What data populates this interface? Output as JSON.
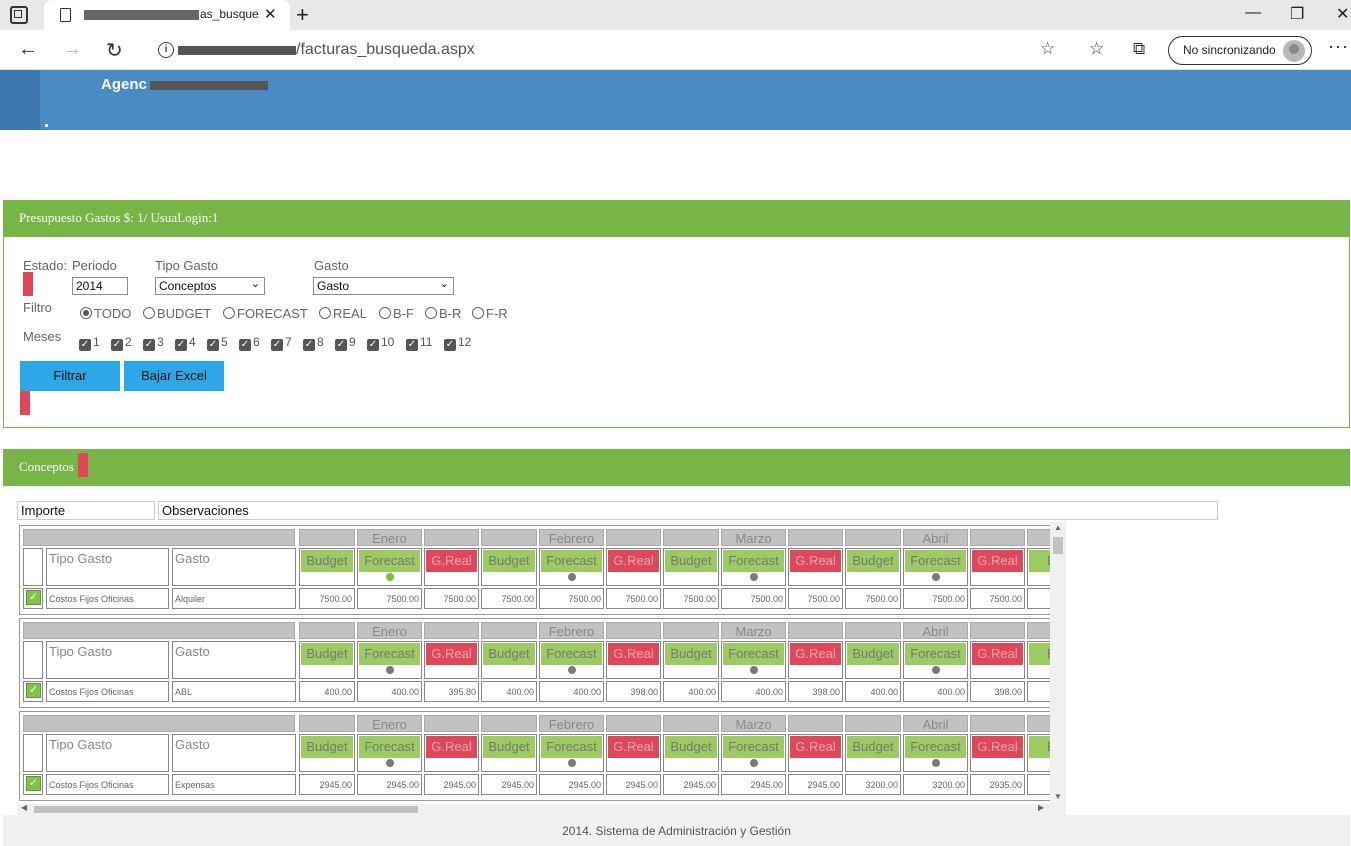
{
  "browser": {
    "tab_title": "as_busque",
    "url_path": "/facturas_busqueda.aspx",
    "profile_label": "No sincronizando"
  },
  "site": {
    "header_title": "Agenc"
  },
  "budget_panel": {
    "title": "Presupuesto Gastos $: 1/ UsuaLogin:1",
    "estado_label": "Estado:",
    "periodo_label": "Periodo",
    "periodo_value": "2014",
    "tipo_gasto_label": "Tipo Gasto",
    "tipo_gasto_value": "Conceptos",
    "gasto_label": "Gasto",
    "gasto_value": "Gasto",
    "filtro_label": "Filtro",
    "filters": [
      {
        "label": "TODO",
        "selected": true
      },
      {
        "label": "BUDGET",
        "selected": false
      },
      {
        "label": "FORECAST",
        "selected": false
      },
      {
        "label": "REAL",
        "selected": false
      },
      {
        "label": "B-F",
        "selected": false
      },
      {
        "label": "B-R",
        "selected": false
      },
      {
        "label": "F-R",
        "selected": false
      }
    ],
    "meses_label": "Meses",
    "months_checked": [
      "1",
      "2",
      "3",
      "4",
      "5",
      "6",
      "7",
      "8",
      "9",
      "10",
      "11",
      "12"
    ],
    "filtrar_button": "Filtrar",
    "excel_button": "Bajar Excel"
  },
  "concepts_panel": {
    "title": "Conceptos",
    "importe_label": "Importe",
    "observaciones_label": "Observaciones",
    "tipo_gasto_header": "Tipo Gasto",
    "gasto_header": "Gasto",
    "months": [
      "Enero",
      "Febrero",
      "Marzo",
      "Abril"
    ],
    "column_types": [
      "Budget",
      "Forecast",
      "G.Real"
    ],
    "rows": [
      {
        "tipo": "Costos Fijos Oficinas",
        "gasto": "Alquiler",
        "values": [
          "7500.00",
          "7500.00",
          "7500.00",
          "7500.00",
          "7500.00",
          "7500.00",
          "7500.00",
          "7500.00",
          "7500.00",
          "7500.00",
          "7500.00",
          "7500.00",
          "75"
        ],
        "first_forecast_dot": "green"
      },
      {
        "tipo": "Costos Fijos Oficinas",
        "gasto": "ABL",
        "values": [
          "400.00",
          "400.00",
          "395.80",
          "400.00",
          "400.00",
          "398.00",
          "400.00",
          "400.00",
          "398.00",
          "400.00",
          "400.00",
          "398.00",
          "4"
        ],
        "first_forecast_dot": "gray"
      },
      {
        "tipo": "Costos Fijos Oficinas",
        "gasto": "Expensas",
        "values": [
          "2945.00",
          "2945.00",
          "2945.00",
          "2945.00",
          "2945.00",
          "2945.00",
          "2945.00",
          "2945.00",
          "2945.00",
          "3200.00",
          "3200.00",
          "2935.00",
          "32"
        ],
        "first_forecast_dot": "gray"
      }
    ],
    "partial_column_label": "Bu"
  },
  "footer": {
    "text": "2014. Sistema de Administración y Gestión"
  }
}
